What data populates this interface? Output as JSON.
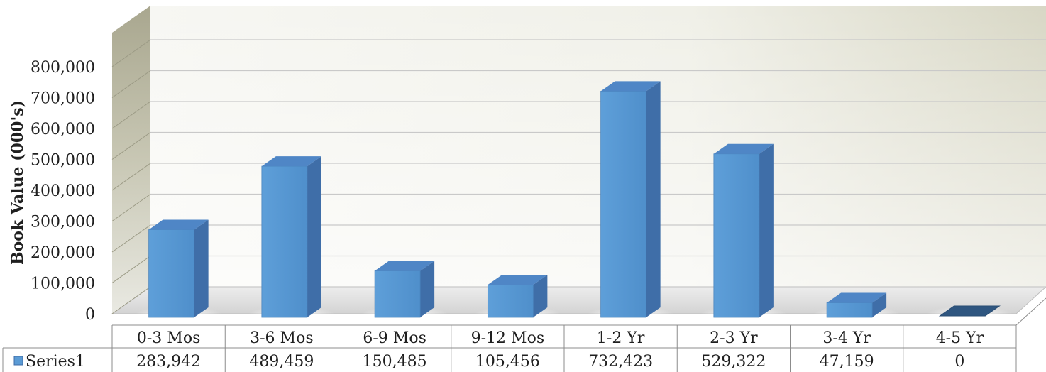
{
  "chart_data": {
    "type": "bar",
    "style": "3d-column-with-data-table",
    "title": "",
    "xlabel": "",
    "ylabel": "Book Value (000's)",
    "categories": [
      "0-3 Mos",
      "3-6 Mos",
      "6-9 Mos",
      "9-12 Mos",
      "1-2 Yr",
      "2-3 Yr",
      "3-4 Yr",
      "4-5 Yr"
    ],
    "series": [
      {
        "name": "Series1",
        "values": [
          283942,
          489459,
          150485,
          105456,
          732423,
          529322,
          47159,
          0
        ],
        "color": "#5b9bd5"
      }
    ],
    "value_labels": [
      "283,942",
      "489,459",
      "150,485",
      "105,456",
      "732,423",
      "529,322",
      "47,159",
      "0"
    ],
    "ylim": [
      0,
      800000
    ],
    "ytick_labels": [
      "0",
      "100,000",
      "200,000",
      "300,000",
      "400,000",
      "500,000",
      "600,000",
      "700,000",
      "800,000"
    ],
    "grid": true,
    "legend": "data-table",
    "colors": {
      "bar_front": "#5b9bd5",
      "bar_top": "#4f86c6",
      "bar_side": "#3f6ea8",
      "back_wall": "#e6e6dc",
      "side_wall": "#b9b7a2",
      "floor": "#e2e2e2",
      "grid": "#c9c9c9",
      "text": "#1f1f1f"
    }
  }
}
